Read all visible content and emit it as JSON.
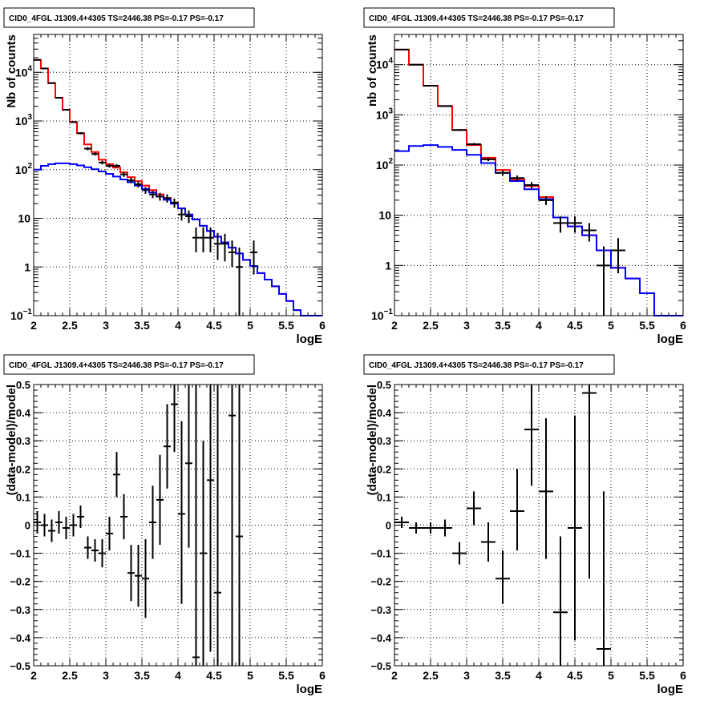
{
  "chart_data": [
    {
      "type": "line",
      "title": "CID0_4FGL J1309.4+4305 TS=2446.38 PS=-0.17 PS=-0.17",
      "xlabel": "logE",
      "ylabel": "Nb of counts",
      "xlim": [
        2,
        6
      ],
      "ylim": [
        0.1,
        60000
      ],
      "yscale": "log",
      "grid": true,
      "x_ticks": [
        "2",
        "2.5",
        "3",
        "3.5",
        "4",
        "4.5",
        "5",
        "5.5",
        "6"
      ],
      "y_ticks": [
        {
          "value": 0.1,
          "label": "10",
          "sup": "−1"
        },
        {
          "value": 1,
          "label": "1",
          "sup": ""
        },
        {
          "value": 10,
          "label": "10",
          "sup": ""
        },
        {
          "value": 100,
          "label": "10",
          "sup": "2"
        },
        {
          "value": 1000,
          "label": "10",
          "sup": "3"
        },
        {
          "value": 10000,
          "label": "10",
          "sup": "4"
        }
      ],
      "bin_edges": [
        2.0,
        2.1,
        2.2,
        2.3,
        2.4,
        2.5,
        2.6,
        2.7,
        2.8,
        2.9,
        3.0,
        3.1,
        3.2,
        3.3,
        3.4,
        3.5,
        3.6,
        3.7,
        3.8,
        3.9,
        4.0,
        4.1,
        4.2,
        4.3,
        4.4,
        4.5,
        4.6,
        4.7,
        4.8,
        4.9,
        5.0,
        5.1,
        5.2,
        5.3,
        5.4,
        5.5,
        5.6,
        5.7,
        5.8,
        5.9,
        6.0
      ],
      "series": [
        {
          "name": "",
          "kind": "histogram",
          "color": "#ff0000",
          "values": [
            18000,
            12000,
            6000,
            3000,
            1700,
            950,
            560,
            330,
            230,
            160,
            130,
            110,
            88,
            70,
            58,
            47,
            38,
            31,
            26,
            21,
            16,
            12,
            9.5,
            7,
            5.5,
            4.2,
            3.2,
            2.5,
            1.9,
            1.4,
            1.05,
            0.75,
            0.55,
            0.4,
            0.28,
            0.2,
            0.13,
            0.1,
            0.1,
            0.1
          ]
        },
        {
          "name": "",
          "kind": "histogram",
          "color": "#0000ff",
          "values": [
            100,
            120,
            130,
            135,
            135,
            130,
            122,
            112,
            102,
            92,
            82,
            72,
            63,
            55,
            47,
            40,
            34,
            28,
            24,
            20,
            16,
            12,
            9.5,
            7,
            5.5,
            4.2,
            3.2,
            2.5,
            1.9,
            1.4,
            1.05,
            0.75,
            0.55,
            0.4,
            0.28,
            0.2,
            0.13,
            0.1,
            0.1,
            0.1
          ]
        },
        {
          "name": "",
          "kind": "points",
          "color": "#000000",
          "x": [
            2.05,
            2.15,
            2.25,
            2.35,
            2.45,
            2.55,
            2.65,
            2.75,
            2.85,
            2.95,
            3.05,
            3.15,
            3.25,
            3.35,
            3.45,
            3.55,
            3.65,
            3.75,
            3.85,
            3.95,
            4.05,
            4.15,
            4.25,
            4.35,
            4.45,
            4.55,
            4.65,
            4.75,
            4.85,
            5.05
          ],
          "y": [
            18000,
            12000,
            6000,
            3000,
            1700,
            950,
            560,
            270,
            210,
            140,
            120,
            120,
            80,
            60,
            50,
            38,
            31,
            28,
            26,
            21,
            12,
            11,
            4,
            4,
            4,
            3,
            3,
            2,
            1,
            2
          ],
          "ylo": [
            17500,
            11700,
            5850,
            2900,
            1640,
            910,
            530,
            250,
            195,
            128,
            110,
            110,
            71,
            53,
            43,
            32,
            26,
            23,
            21,
            16.5,
            9,
            8,
            2,
            2,
            2,
            1.4,
            1.3,
            1,
            0.1,
            0.7
          ],
          "yhi": [
            18500,
            12300,
            6150,
            3100,
            1760,
            990,
            590,
            290,
            225,
            152,
            130,
            130,
            89,
            68,
            57,
            44,
            36.5,
            33.5,
            31,
            25.5,
            15.5,
            14.5,
            6.5,
            6.5,
            6.5,
            5,
            4.8,
            3.5,
            2.5,
            3.5
          ]
        }
      ]
    },
    {
      "type": "line",
      "title": "CID0_4FGL J1309.4+4305 TS=2446.38 PS=-0.17 PS=-0.17",
      "xlabel": "logE",
      "ylabel": "nb of counts",
      "xlim": [
        2,
        6
      ],
      "ylim": [
        0.1,
        40000
      ],
      "yscale": "log",
      "grid": true,
      "x_ticks": [
        "2",
        "2.5",
        "3",
        "3.5",
        "4",
        "4.5",
        "5",
        "5.5",
        "6"
      ],
      "y_ticks": [
        {
          "value": 0.1,
          "label": "10",
          "sup": "−1"
        },
        {
          "value": 1,
          "label": "1",
          "sup": ""
        },
        {
          "value": 10,
          "label": "10",
          "sup": ""
        },
        {
          "value": 100,
          "label": "10",
          "sup": "2"
        },
        {
          "value": 1000,
          "label": "10",
          "sup": "3"
        },
        {
          "value": 10000,
          "label": "10",
          "sup": "4"
        }
      ],
      "bin_edges": [
        2.0,
        2.2,
        2.4,
        2.6,
        2.8,
        3.0,
        3.2,
        3.4,
        3.6,
        3.8,
        4.0,
        4.2,
        4.4,
        4.6,
        4.8,
        5.0,
        5.2,
        5.4,
        5.6,
        5.8,
        6.0
      ],
      "series": [
        {
          "name": "",
          "kind": "histogram",
          "color": "#ff0000",
          "values": [
            20000,
            10000,
            3800,
            1500,
            500,
            250,
            140,
            80,
            52,
            38,
            23,
            9,
            6,
            4,
            2,
            0.9,
            0.55,
            0.28,
            0.1,
            0.1
          ]
        },
        {
          "name": "",
          "kind": "histogram",
          "color": "#0000ff",
          "values": [
            190,
            240,
            250,
            230,
            200,
            160,
            110,
            70,
            48,
            33,
            21,
            9,
            6,
            4,
            2,
            0.9,
            0.55,
            0.28,
            0.1,
            0.1
          ]
        },
        {
          "name": "",
          "kind": "points",
          "color": "#000000",
          "x": [
            2.1,
            2.3,
            2.5,
            2.7,
            2.9,
            3.1,
            3.3,
            3.5,
            3.7,
            3.9,
            4.1,
            4.3,
            4.5,
            4.7,
            4.9,
            5.1
          ],
          "y": [
            20000,
            10000,
            3800,
            1500,
            500,
            260,
            130,
            70,
            55,
            40,
            20,
            7,
            7,
            5,
            1,
            2
          ],
          "ylo": [
            19700,
            9800,
            3700,
            1460,
            480,
            245,
            120,
            62,
            48,
            34,
            16,
            4.5,
            4.5,
            3,
            0.1,
            0.7
          ],
          "yhi": [
            20300,
            10200,
            3900,
            1540,
            520,
            275,
            140,
            78,
            62,
            46,
            24,
            9.5,
            9.5,
            7,
            2.4,
            3.5
          ]
        }
      ]
    },
    {
      "type": "scatter",
      "title": "CID0_4FGL J1309.4+4305 TS=2446.38 PS=-0.17 PS=-0.17",
      "xlabel": "logE",
      "ylabel": "(data-model)/model",
      "xlim": [
        2,
        6
      ],
      "ylim": [
        -0.5,
        0.5
      ],
      "grid": true,
      "x_ticks": [
        "2",
        "2.5",
        "3",
        "3.5",
        "4",
        "4.5",
        "5",
        "5.5",
        "6"
      ],
      "y_ticks": [
        "−0.5",
        "−0.4",
        "−0.3",
        "−0.2",
        "−0.1",
        "0",
        "0.1",
        "0.2",
        "0.3",
        "0.4",
        "0.5"
      ],
      "series": [
        {
          "name": "",
          "kind": "points",
          "color": "#000000",
          "xhalf": 0.05,
          "x": [
            2.05,
            2.15,
            2.25,
            2.35,
            2.45,
            2.55,
            2.65,
            2.75,
            2.85,
            2.95,
            3.05,
            3.15,
            3.25,
            3.35,
            3.45,
            3.55,
            3.65,
            3.75,
            3.85,
            3.95,
            4.05,
            4.15,
            4.25,
            4.35,
            4.45,
            4.55,
            4.75,
            4.85
          ],
          "y": [
            0.01,
            0,
            -0.02,
            0.01,
            -0.01,
            0,
            0.03,
            -0.08,
            -0.09,
            -0.1,
            -0.03,
            0.18,
            0.03,
            -0.17,
            -0.18,
            -0.19,
            0.01,
            0.09,
            0.28,
            0.43,
            0.04,
            0.22,
            -0.47,
            -0.1,
            0.16,
            -0.24,
            0.39,
            -0.04
          ],
          "ylo": [
            -0.03,
            -0.04,
            -0.06,
            -0.03,
            -0.05,
            -0.04,
            -0.01,
            -0.12,
            -0.13,
            -0.15,
            -0.09,
            0.1,
            -0.05,
            -0.27,
            -0.29,
            -0.33,
            -0.12,
            -0.07,
            0.13,
            0.26,
            -0.28,
            -0.08,
            -0.5,
            -0.5,
            -0.45,
            -0.5,
            -0.5,
            -0.5
          ],
          "yhi": [
            0.05,
            0.04,
            0.02,
            0.05,
            0.03,
            0.04,
            0.07,
            -0.04,
            -0.05,
            -0.05,
            0.03,
            0.26,
            0.11,
            -0.07,
            -0.07,
            -0.05,
            0.14,
            0.25,
            0.43,
            0.5,
            0.37,
            0.5,
            0.5,
            0.3,
            0.5,
            0.5,
            0.5,
            0.5
          ]
        }
      ]
    },
    {
      "type": "scatter",
      "title": "CID0_4FGL J1309.4+4305 TS=2446.38 PS=-0.17 PS=-0.17",
      "xlabel": "logE",
      "ylabel": "(data-model)/model",
      "xlim": [
        2,
        6
      ],
      "ylim": [
        -0.5,
        0.5
      ],
      "grid": true,
      "x_ticks": [
        "2",
        "2.5",
        "3",
        "3.5",
        "4",
        "4.5",
        "5",
        "5.5",
        "6"
      ],
      "y_ticks": [
        "−0.5",
        "−0.4",
        "−0.3",
        "−0.2",
        "−0.1",
        "0",
        "0.1",
        "0.2",
        "0.3",
        "0.4",
        "0.5"
      ],
      "series": [
        {
          "name": "",
          "kind": "points",
          "color": "#000000",
          "xhalf": 0.1,
          "x": [
            2.1,
            2.3,
            2.5,
            2.7,
            2.9,
            3.1,
            3.3,
            3.5,
            3.7,
            3.9,
            4.1,
            4.3,
            4.5,
            4.7,
            4.9
          ],
          "y": [
            0.01,
            -0.01,
            -0.01,
            -0.01,
            -0.1,
            0.06,
            -0.06,
            -0.19,
            0.05,
            0.34,
            0.12,
            -0.31,
            -0.01,
            0.47,
            -0.44
          ],
          "ylo": [
            -0.01,
            -0.03,
            -0.03,
            -0.04,
            -0.14,
            0,
            -0.13,
            -0.28,
            -0.09,
            0.14,
            -0.12,
            -0.5,
            -0.41,
            -0.19,
            -0.5
          ],
          "yhi": [
            0.03,
            0.01,
            0.01,
            0.02,
            -0.06,
            0.12,
            0.01,
            -0.09,
            0.2,
            0.5,
            0.38,
            -0.04,
            0.39,
            0.5,
            0.12
          ]
        }
      ]
    }
  ]
}
